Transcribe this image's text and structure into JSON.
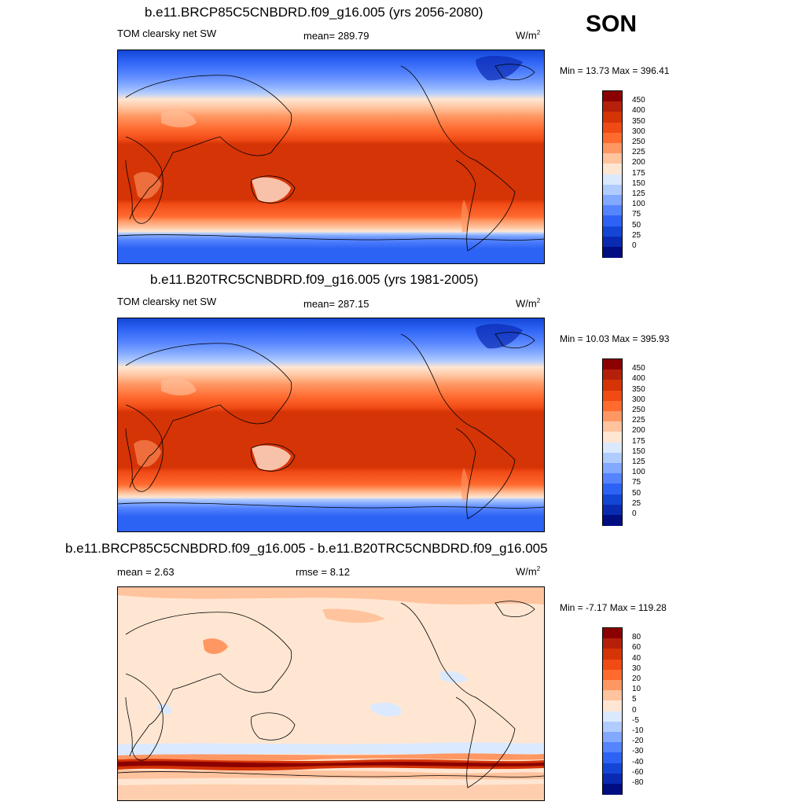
{
  "season": "SON",
  "panels": [
    {
      "title": "b.e11.BRCP85C5CNBDRD.f09_g16.005 (yrs 2056-2080)",
      "left_label": "TOM clearsky net SW",
      "center_label": "mean= 289.79",
      "units": "W/m",
      "units_exp": "2",
      "minmax": "Min =  13.73 Max = 396.41",
      "colorbar": {
        "labels": [
          "450",
          "400",
          "350",
          "300",
          "250",
          "225",
          "200",
          "175",
          "150",
          "125",
          "100",
          "75",
          "50",
          "25",
          "0"
        ],
        "colors": [
          "#8b0000",
          "#b5200b",
          "#d53406",
          "#f04a15",
          "#ff6a2f",
          "#ff9763",
          "#ffc39e",
          "#ffe6d2",
          "#dbe9ff",
          "#b0ccff",
          "#82a8ff",
          "#5584ff",
          "#2d63f5",
          "#1446d5",
          "#0a2ab2",
          "#000e82"
        ]
      }
    },
    {
      "title": "b.e11.B20TRC5CNBDRD.f09_g16.005 (yrs 1981-2005)",
      "left_label": "TOM clearsky net SW",
      "center_label": "mean= 287.15",
      "units": "W/m",
      "units_exp": "2",
      "minmax": "Min =  10.03 Max = 395.93",
      "colorbar": {
        "labels": [
          "450",
          "400",
          "350",
          "300",
          "250",
          "225",
          "200",
          "175",
          "150",
          "125",
          "100",
          "75",
          "50",
          "25",
          "0"
        ],
        "colors": [
          "#8b0000",
          "#b5200b",
          "#d53406",
          "#f04a15",
          "#ff6a2f",
          "#ff9763",
          "#ffc39e",
          "#ffe6d2",
          "#dbe9ff",
          "#b0ccff",
          "#82a8ff",
          "#5584ff",
          "#2d63f5",
          "#1446d5",
          "#0a2ab2",
          "#000e82"
        ]
      }
    },
    {
      "title": "b.e11.BRCP85C5CNBDRD.f09_g16.005 - b.e11.B20TRC5CNBDRD.f09_g16.005",
      "left_label": "mean =   2.63",
      "center_label": "rmse =   8.12",
      "units": "W/m",
      "units_exp": "2",
      "minmax": "Min =  -7.17 Max = 119.28",
      "colorbar": {
        "labels": [
          "80",
          "60",
          "40",
          "30",
          "20",
          "10",
          "5",
          "0",
          "-5",
          "-10",
          "-20",
          "-30",
          "-40",
          "-60",
          "-80"
        ],
        "colors": [
          "#8b0000",
          "#b5200b",
          "#d53406",
          "#f04a15",
          "#ff6a2f",
          "#ff9763",
          "#ffc39e",
          "#ffe6d2",
          "#dbe9ff",
          "#b0ccff",
          "#82a8ff",
          "#5584ff",
          "#2d63f5",
          "#1446d5",
          "#0a2ab2",
          "#000e82"
        ]
      }
    }
  ]
}
